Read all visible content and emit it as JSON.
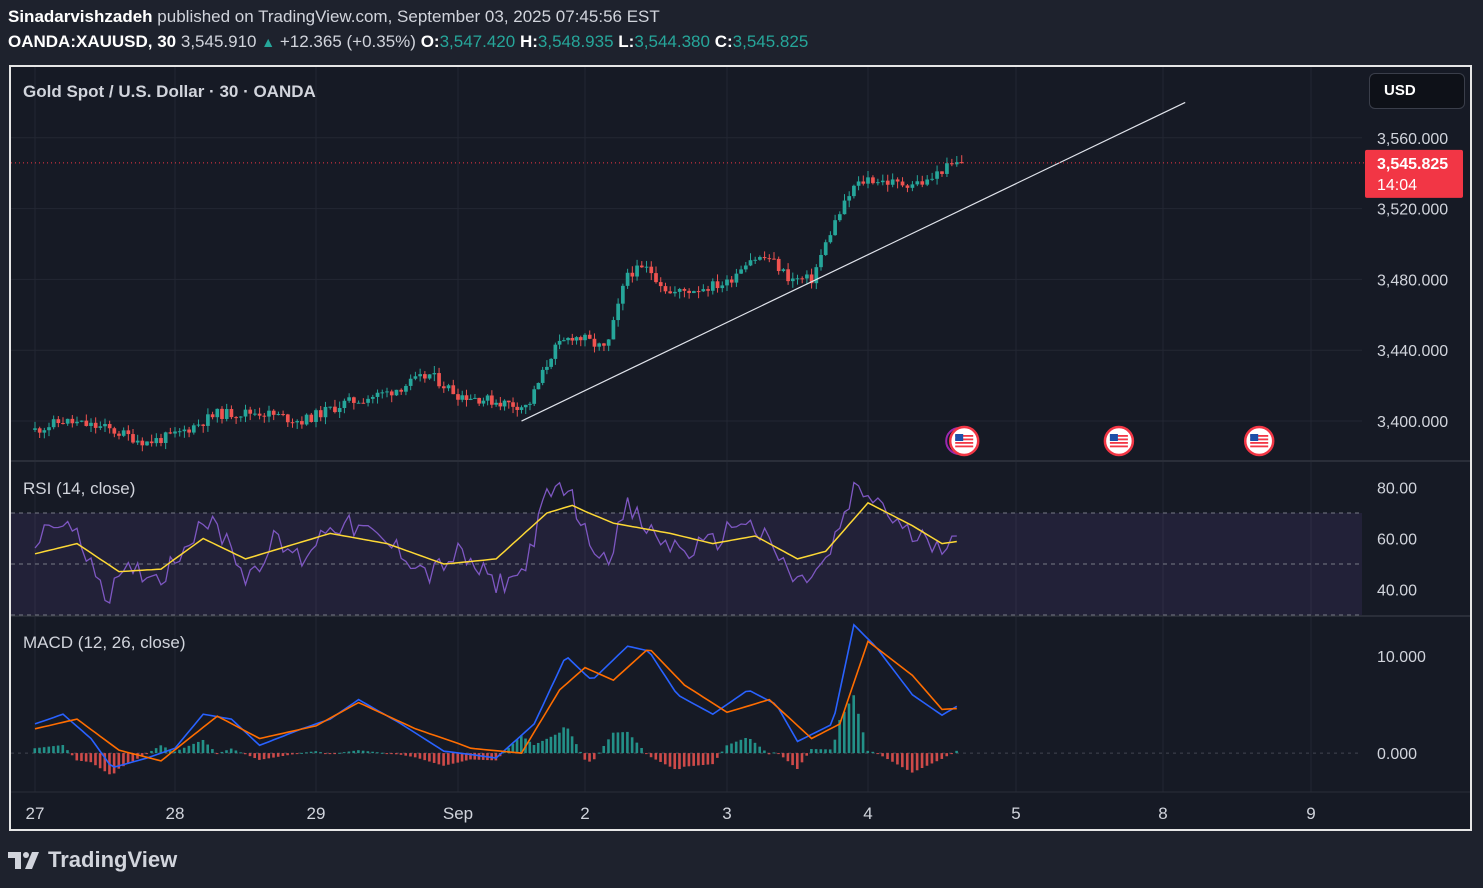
{
  "header": {
    "author": "Sinadarvishzadeh",
    "published_text": "published on TradingView.com, September 03, 2025 07:45:56 EST",
    "symbol": "OANDA:XAUUSD, 30",
    "last": "3,545.910",
    "change": "+12.365 (+0.35%)",
    "open_label": "O:",
    "open": "3,547.420",
    "high_label": "H:",
    "high": "3,548.935",
    "low_label": "L:",
    "low": "3,544.380",
    "close_label": "C:",
    "close": "3,545.825"
  },
  "pane_title": "Gold Spot / U.S. Dollar · 30 · OANDA",
  "currency_button": "USD",
  "price_badge": {
    "price": "3,545.825",
    "countdown": "14:04"
  },
  "rsi_title": "RSI (14, close)",
  "macd_title": "MACD (12, 26, close)",
  "footer_brand": "TradingView",
  "colors": {
    "up": "#26a69a",
    "down": "#ef5350",
    "rsi": "#7e57c2",
    "rsi_ma": "#fdd835",
    "macd": "#2962ff",
    "signal": "#ff6d00",
    "badge": "#f23645",
    "bg": "#161a25"
  },
  "chart_data": [
    {
      "type": "candlestick",
      "title": "Gold Spot / U.S. Dollar · 30 · OANDA",
      "x_ticks": [
        "27",
        "28",
        "29",
        "Sep",
        "2",
        "3",
        "4",
        "5",
        "8",
        "9"
      ],
      "y_ticks": [
        "3,400.000",
        "3,440.000",
        "3,480.000",
        "3,520.000",
        "3,560.000"
      ],
      "ylim": [
        3378,
        3600
      ],
      "last_price": 3545.825,
      "close_path": [
        {
          "x": 0,
          "y": 3395
        },
        {
          "x": 0.2,
          "y": 3400
        },
        {
          "x": 0.5,
          "y": 3396
        },
        {
          "x": 0.8,
          "y": 3388
        },
        {
          "x": 1.0,
          "y": 3392
        },
        {
          "x": 1.3,
          "y": 3404
        },
        {
          "x": 1.6,
          "y": 3405
        },
        {
          "x": 1.9,
          "y": 3400
        },
        {
          "x": 2.2,
          "y": 3410
        },
        {
          "x": 2.5,
          "y": 3416
        },
        {
          "x": 2.8,
          "y": 3426
        },
        {
          "x": 3.0,
          "y": 3415
        },
        {
          "x": 3.3,
          "y": 3411
        },
        {
          "x": 3.55,
          "y": 3408
        },
        {
          "x": 3.75,
          "y": 3440
        },
        {
          "x": 3.9,
          "y": 3448
        },
        {
          "x": 4.0,
          "y": 3446
        },
        {
          "x": 4.15,
          "y": 3440
        },
        {
          "x": 4.3,
          "y": 3484
        },
        {
          "x": 4.45,
          "y": 3486
        },
        {
          "x": 4.6,
          "y": 3472
        },
        {
          "x": 4.8,
          "y": 3475
        },
        {
          "x": 5.0,
          "y": 3478
        },
        {
          "x": 5.15,
          "y": 3492
        },
        {
          "x": 5.3,
          "y": 3492
        },
        {
          "x": 5.45,
          "y": 3480
        },
        {
          "x": 5.6,
          "y": 3480
        },
        {
          "x": 5.75,
          "y": 3510
        },
        {
          "x": 5.9,
          "y": 3532
        },
        {
          "x": 6.0,
          "y": 3537
        },
        {
          "x": 6.2,
          "y": 3534
        },
        {
          "x": 6.4,
          "y": 3535
        },
        {
          "x": 6.5,
          "y": 3542
        },
        {
          "x": 6.62,
          "y": 3545.8
        }
      ],
      "trendline": [
        {
          "x": 3.5,
          "y": 3400
        },
        {
          "x": 8.15,
          "y": 3580
        }
      ],
      "event_markers": [
        {
          "x": 6.65,
          "type": "us-flag"
        },
        {
          "x": 7.7,
          "type": "us-flag"
        },
        {
          "x": 8.65,
          "type": "us-flag"
        }
      ]
    },
    {
      "type": "line",
      "title": "RSI (14, close)",
      "y_ticks": [
        "80.00",
        "60.00",
        "40.00"
      ],
      "ylim": [
        30,
        90
      ],
      "band": [
        30,
        70
      ],
      "midline": 50,
      "series": [
        {
          "name": "RSI",
          "values": [
            {
              "x": 0,
              "y": 58
            },
            {
              "x": 0.2,
              "y": 68
            },
            {
              "x": 0.45,
              "y": 48
            },
            {
              "x": 0.5,
              "y": 37
            },
            {
              "x": 0.7,
              "y": 48
            },
            {
              "x": 0.9,
              "y": 45
            },
            {
              "x": 1.0,
              "y": 52
            },
            {
              "x": 1.2,
              "y": 68
            },
            {
              "x": 1.4,
              "y": 58
            },
            {
              "x": 1.5,
              "y": 44
            },
            {
              "x": 1.7,
              "y": 59
            },
            {
              "x": 1.9,
              "y": 52
            },
            {
              "x": 2.1,
              "y": 66
            },
            {
              "x": 2.3,
              "y": 64
            },
            {
              "x": 2.6,
              "y": 55
            },
            {
              "x": 2.8,
              "y": 46
            },
            {
              "x": 3.0,
              "y": 54
            },
            {
              "x": 3.3,
              "y": 42
            },
            {
              "x": 3.5,
              "y": 46
            },
            {
              "x": 3.7,
              "y": 76
            },
            {
              "x": 3.85,
              "y": 82
            },
            {
              "x": 4.0,
              "y": 62
            },
            {
              "x": 4.15,
              "y": 52
            },
            {
              "x": 4.3,
              "y": 72
            },
            {
              "x": 4.5,
              "y": 60
            },
            {
              "x": 4.7,
              "y": 55
            },
            {
              "x": 4.9,
              "y": 58
            },
            {
              "x": 5.1,
              "y": 68
            },
            {
              "x": 5.3,
              "y": 58
            },
            {
              "x": 5.5,
              "y": 42
            },
            {
              "x": 5.7,
              "y": 50
            },
            {
              "x": 5.9,
              "y": 78
            },
            {
              "x": 6.05,
              "y": 76
            },
            {
              "x": 6.25,
              "y": 62
            },
            {
              "x": 6.5,
              "y": 58
            },
            {
              "x": 6.62,
              "y": 65
            }
          ]
        },
        {
          "name": "RSI-based MA",
          "values": [
            {
              "x": 0,
              "y": 54
            },
            {
              "x": 0.3,
              "y": 58
            },
            {
              "x": 0.6,
              "y": 47
            },
            {
              "x": 0.9,
              "y": 48
            },
            {
              "x": 1.2,
              "y": 60
            },
            {
              "x": 1.5,
              "y": 52
            },
            {
              "x": 1.8,
              "y": 57
            },
            {
              "x": 2.1,
              "y": 62
            },
            {
              "x": 2.5,
              "y": 58
            },
            {
              "x": 2.9,
              "y": 50
            },
            {
              "x": 3.3,
              "y": 52
            },
            {
              "x": 3.7,
              "y": 70
            },
            {
              "x": 3.9,
              "y": 73
            },
            {
              "x": 4.2,
              "y": 66
            },
            {
              "x": 4.6,
              "y": 62
            },
            {
              "x": 4.9,
              "y": 58
            },
            {
              "x": 5.2,
              "y": 61
            },
            {
              "x": 5.5,
              "y": 52
            },
            {
              "x": 5.7,
              "y": 55
            },
            {
              "x": 6.0,
              "y": 74
            },
            {
              "x": 6.3,
              "y": 65
            },
            {
              "x": 6.5,
              "y": 58
            },
            {
              "x": 6.62,
              "y": 59
            }
          ]
        }
      ]
    },
    {
      "type": "line",
      "title": "MACD (12, 26, close)",
      "y_ticks": [
        "10.000",
        "0.000"
      ],
      "ylim": [
        -4,
        14
      ],
      "series": [
        {
          "name": "MACD",
          "values": [
            {
              "x": 0,
              "y": 3
            },
            {
              "x": 0.2,
              "y": 4
            },
            {
              "x": 0.4,
              "y": 1.5
            },
            {
              "x": 0.55,
              "y": -1.5
            },
            {
              "x": 0.8,
              "y": -0.5
            },
            {
              "x": 1.0,
              "y": 0.5
            },
            {
              "x": 1.2,
              "y": 4
            },
            {
              "x": 1.4,
              "y": 3.5
            },
            {
              "x": 1.6,
              "y": 0.8
            },
            {
              "x": 1.9,
              "y": 2.5
            },
            {
              "x": 2.1,
              "y": 3.5
            },
            {
              "x": 2.3,
              "y": 5.5
            },
            {
              "x": 2.6,
              "y": 3
            },
            {
              "x": 2.9,
              "y": 0.2
            },
            {
              "x": 3.3,
              "y": -0.5
            },
            {
              "x": 3.6,
              "y": 3
            },
            {
              "x": 3.85,
              "y": 10
            },
            {
              "x": 4.05,
              "y": 7.5
            },
            {
              "x": 4.3,
              "y": 11
            },
            {
              "x": 4.45,
              "y": 10.5
            },
            {
              "x": 4.65,
              "y": 6
            },
            {
              "x": 4.9,
              "y": 4
            },
            {
              "x": 5.15,
              "y": 6.5
            },
            {
              "x": 5.35,
              "y": 5
            },
            {
              "x": 5.5,
              "y": 1.2
            },
            {
              "x": 5.75,
              "y": 3
            },
            {
              "x": 5.9,
              "y": 13.2
            },
            {
              "x": 6.05,
              "y": 11
            },
            {
              "x": 6.3,
              "y": 6
            },
            {
              "x": 6.5,
              "y": 3.9
            },
            {
              "x": 6.62,
              "y": 5
            }
          ]
        },
        {
          "name": "Signal",
          "values": [
            {
              "x": 0,
              "y": 2.5
            },
            {
              "x": 0.3,
              "y": 3.5
            },
            {
              "x": 0.6,
              "y": 0.3
            },
            {
              "x": 0.9,
              "y": -0.8
            },
            {
              "x": 1.3,
              "y": 3.8
            },
            {
              "x": 1.6,
              "y": 1.5
            },
            {
              "x": 2.0,
              "y": 2.8
            },
            {
              "x": 2.3,
              "y": 5.2
            },
            {
              "x": 2.7,
              "y": 2.5
            },
            {
              "x": 3.1,
              "y": 0.5
            },
            {
              "x": 3.5,
              "y": 0
            },
            {
              "x": 3.8,
              "y": 6.5
            },
            {
              "x": 4.0,
              "y": 8.8
            },
            {
              "x": 4.2,
              "y": 7.5
            },
            {
              "x": 4.45,
              "y": 10.8
            },
            {
              "x": 4.7,
              "y": 7
            },
            {
              "x": 5.0,
              "y": 4.2
            },
            {
              "x": 5.3,
              "y": 5.5
            },
            {
              "x": 5.6,
              "y": 1.5
            },
            {
              "x": 5.8,
              "y": 3
            },
            {
              "x": 6.0,
              "y": 11.5
            },
            {
              "x": 6.3,
              "y": 8
            },
            {
              "x": 6.5,
              "y": 4.5
            },
            {
              "x": 6.62,
              "y": 4.6
            }
          ]
        }
      ]
    }
  ]
}
